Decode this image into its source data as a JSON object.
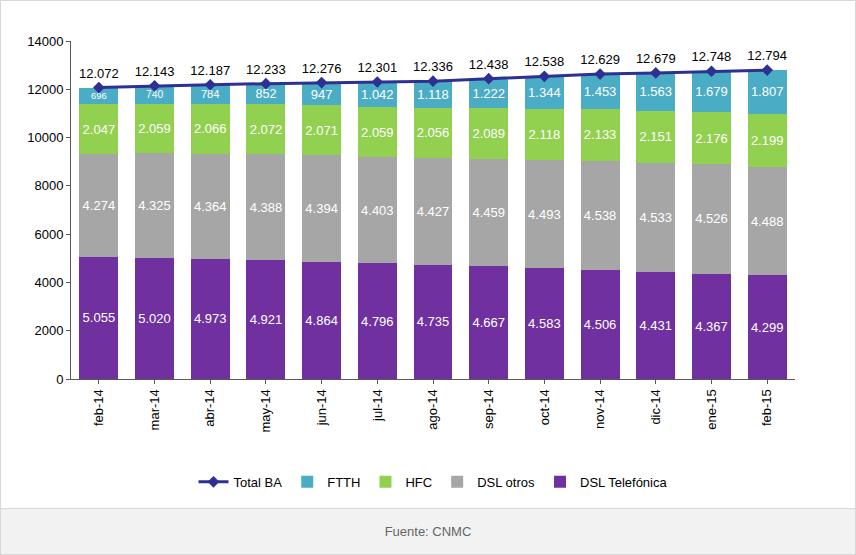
{
  "chart_data": {
    "type": "bar",
    "stacked": true,
    "data_labels": true,
    "grid": false,
    "legend": "bottom",
    "source": "Fuente: CNMC",
    "categories": [
      "feb-14",
      "mar-14",
      "abr-14",
      "may-14",
      "jun-14",
      "jul-14",
      "ago-14",
      "sep-14",
      "oct-14",
      "nov-14",
      "dic-14",
      "ene-15",
      "feb-15"
    ],
    "ylim": [
      0,
      14000
    ],
    "yticks": [
      0,
      2000,
      4000,
      6000,
      8000,
      10000,
      12000,
      14000
    ],
    "series": [
      {
        "name": "DSL Telefónica",
        "color": "#7030a0",
        "values": [
          5055,
          5020,
          4973,
          4921,
          4864,
          4796,
          4735,
          4667,
          4583,
          4506,
          4431,
          4367,
          4299
        ],
        "value_labels": [
          "5.055",
          "5.020",
          "4.973",
          "4.921",
          "4.864",
          "4.796",
          "4.735",
          "4.667",
          "4.583",
          "4.506",
          "4.431",
          "4.367",
          "4.299"
        ]
      },
      {
        "name": "DSL otros",
        "color": "#a6a6a6",
        "values": [
          4274,
          4325,
          4364,
          4388,
          4394,
          4403,
          4427,
          4459,
          4493,
          4538,
          4533,
          4526,
          4488
        ],
        "value_labels": [
          "4.274",
          "4.325",
          "4.364",
          "4.388",
          "4.394",
          "4.403",
          "4.427",
          "4.459",
          "4.493",
          "4.538",
          "4.533",
          "4.526",
          "4.488"
        ]
      },
      {
        "name": "HFC",
        "color": "#92d050",
        "values": [
          2047,
          2059,
          2066,
          2072,
          2071,
          2059,
          2056,
          2089,
          2118,
          2133,
          2151,
          2176,
          2199
        ],
        "value_labels": [
          "2.047",
          "2.059",
          "2.066",
          "2.072",
          "2.071",
          "2.059",
          "2.056",
          "2.089",
          "2.118",
          "2.133",
          "2.151",
          "2.176",
          "2.199"
        ]
      },
      {
        "name": "FTTH",
        "color": "#4bacc6",
        "values": [
          696,
          740,
          784,
          852,
          947,
          1042,
          1118,
          1222,
          1344,
          1453,
          1563,
          1679,
          1807
        ],
        "value_labels": [
          "696",
          "740",
          "784",
          "852",
          "947",
          "1.042",
          "1.118",
          "1.222",
          "1.344",
          "1.453",
          "1.563",
          "1.679",
          "1.807"
        ]
      },
      {
        "name": "Total BA",
        "color": "#2e3192",
        "type": "line",
        "marker": "diamond",
        "values": [
          12072,
          12143,
          12187,
          12233,
          12276,
          12301,
          12336,
          12438,
          12538,
          12629,
          12679,
          12748,
          12794
        ],
        "value_labels": [
          "12.072",
          "12.143",
          "12.187",
          "12.233",
          "12.276",
          "12.301",
          "12.336",
          "12.438",
          "12.538",
          "12.629",
          "12.679",
          "12.748",
          "12.794"
        ]
      }
    ]
  }
}
